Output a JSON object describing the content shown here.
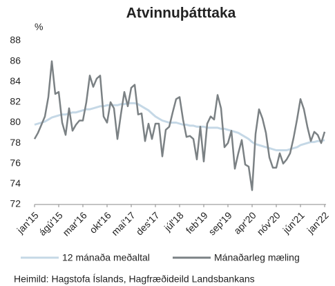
{
  "chart_data": {
    "type": "line",
    "title": "Atvinnuþátttaka",
    "y_label": "%",
    "categories": [
      "jan'15",
      null,
      null,
      null,
      null,
      null,
      null,
      "ágú'15",
      null,
      null,
      null,
      null,
      null,
      null,
      "mar'16",
      null,
      null,
      null,
      null,
      null,
      null,
      "okt'16",
      null,
      null,
      null,
      null,
      null,
      null,
      "maí'17",
      null,
      null,
      null,
      null,
      null,
      null,
      "des'17",
      null,
      null,
      null,
      null,
      null,
      null,
      "júl'18",
      null,
      null,
      null,
      null,
      null,
      null,
      "feb'19",
      null,
      null,
      null,
      null,
      null,
      null,
      "sep'19",
      null,
      null,
      null,
      null,
      null,
      null,
      "apr'20",
      null,
      null,
      null,
      null,
      null,
      null,
      "nóv'20",
      null,
      null,
      null,
      null,
      null,
      null,
      "jún'21",
      null,
      null,
      null,
      null,
      null,
      null,
      "jan'22"
    ],
    "series": [
      {
        "name": "12 mánaða meðaltal",
        "color": "#c5d8e6",
        "values": [
          79.8,
          79.9,
          80.0,
          80.1,
          80.3,
          80.5,
          80.6,
          80.7,
          80.8,
          80.8,
          80.9,
          81.0,
          81.0,
          81.1,
          81.2,
          81.3,
          81.3,
          81.4,
          81.5,
          81.6,
          81.6,
          81.7,
          81.7,
          81.7,
          81.7,
          81.8,
          81.8,
          81.9,
          81.9,
          81.9,
          81.8,
          81.6,
          81.4,
          81.2,
          80.9,
          80.6,
          80.4,
          80.2,
          80.1,
          80.0,
          80.0,
          80.0,
          79.9,
          79.8,
          79.8,
          79.7,
          79.7,
          79.6,
          79.6,
          79.6,
          79.5,
          79.5,
          79.5,
          79.5,
          79.4,
          79.4,
          79.3,
          79.2,
          79.1,
          79.0,
          78.8,
          78.6,
          78.4,
          78.1,
          77.9,
          77.8,
          77.7,
          77.6,
          77.5,
          77.4,
          77.3,
          77.3,
          77.3,
          77.3,
          77.4,
          77.5,
          77.6,
          77.8,
          77.9,
          78.0,
          78.1,
          78.1,
          78.2,
          78.2,
          78.3
        ]
      },
      {
        "name": "Mánaðarleg mæling",
        "color": "#7b8184",
        "values": [
          78.4,
          79.0,
          79.8,
          80.6,
          82.5,
          86.0,
          82.8,
          83.0,
          80.0,
          78.8,
          81.4,
          79.2,
          79.8,
          80.2,
          80.2,
          82.0,
          84.6,
          83.5,
          84.3,
          84.6,
          80.6,
          80.0,
          82.0,
          81.4,
          78.4,
          80.8,
          83.0,
          81.6,
          83.4,
          83.7,
          80.8,
          80.9,
          78.2,
          79.9,
          78.4,
          79.9,
          79.9,
          76.7,
          79.3,
          79.6,
          81.0,
          82.3,
          82.5,
          80.3,
          78.6,
          78.7,
          78.4,
          76.4,
          79.6,
          76.2,
          79.9,
          80.6,
          80.3,
          82.7,
          81.4,
          77.6,
          78.0,
          79.2,
          75.5,
          77.0,
          78.3,
          75.9,
          75.7,
          73.4,
          78.9,
          81.3,
          80.4,
          79.0,
          76.6,
          75.6,
          75.6,
          77.0,
          76.0,
          76.4,
          77.0,
          78.5,
          80.3,
          82.3,
          81.3,
          79.6,
          78.2,
          79.1,
          78.8,
          78.0,
          79.1
        ]
      }
    ],
    "ylim": [
      72,
      88
    ],
    "yticks": [
      72,
      74,
      76,
      78,
      80,
      82,
      84,
      86,
      88
    ],
    "grid": false,
    "source": "Heimild: Hagstofa Íslands, Hagfræðideild Landsbankans"
  }
}
